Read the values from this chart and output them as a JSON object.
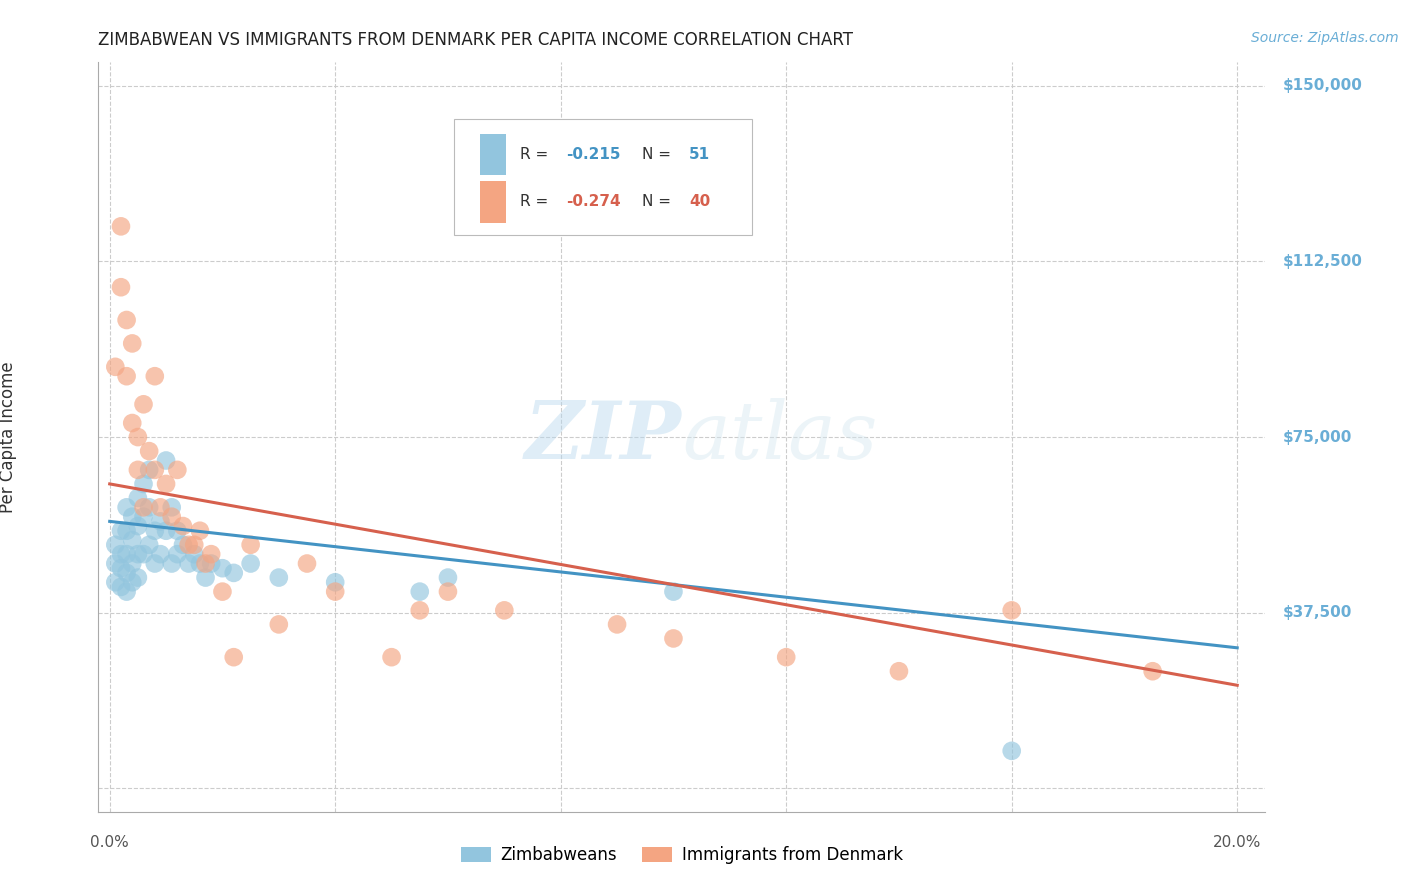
{
  "title": "ZIMBABWEAN VS IMMIGRANTS FROM DENMARK PER CAPITA INCOME CORRELATION CHART",
  "source": "Source: ZipAtlas.com",
  "ylabel": "Per Capita Income",
  "xlim": [
    -0.002,
    0.205
  ],
  "ylim": [
    -5000,
    155000
  ],
  "yticks": [
    0,
    37500,
    75000,
    112500,
    150000
  ],
  "yticklabels": [
    "",
    "$37,500",
    "$75,000",
    "$112,500",
    "$150,000"
  ],
  "blue_color": "#92c5de",
  "pink_color": "#f4a582",
  "blue_line_color": "#4393c3",
  "pink_line_color": "#d6604d",
  "r_blue": -0.215,
  "n_blue": 51,
  "r_pink": -0.274,
  "n_pink": 40,
  "legend_label_blue": "Zimbabweans",
  "legend_label_pink": "Immigrants from Denmark",
  "watermark_zip": "ZIP",
  "watermark_atlas": "atlas",
  "background_color": "#ffffff",
  "grid_color": "#cccccc",
  "title_color": "#222222",
  "source_color": "#6aaed6",
  "yticklabel_color": "#6aaed6",
  "blue_scatter_x": [
    0.001,
    0.001,
    0.001,
    0.002,
    0.002,
    0.002,
    0.002,
    0.003,
    0.003,
    0.003,
    0.003,
    0.003,
    0.004,
    0.004,
    0.004,
    0.004,
    0.005,
    0.005,
    0.005,
    0.005,
    0.006,
    0.006,
    0.006,
    0.007,
    0.007,
    0.007,
    0.008,
    0.008,
    0.009,
    0.009,
    0.01,
    0.01,
    0.011,
    0.011,
    0.012,
    0.012,
    0.013,
    0.014,
    0.015,
    0.016,
    0.017,
    0.018,
    0.02,
    0.022,
    0.025,
    0.03,
    0.04,
    0.055,
    0.06,
    0.1,
    0.16
  ],
  "blue_scatter_y": [
    52000,
    48000,
    44000,
    55000,
    50000,
    47000,
    43000,
    60000,
    55000,
    50000,
    46000,
    42000,
    58000,
    53000,
    48000,
    44000,
    62000,
    56000,
    50000,
    45000,
    65000,
    58000,
    50000,
    68000,
    60000,
    52000,
    55000,
    48000,
    57000,
    50000,
    70000,
    55000,
    60000,
    48000,
    55000,
    50000,
    52000,
    48000,
    50000,
    48000,
    45000,
    48000,
    47000,
    46000,
    48000,
    45000,
    44000,
    42000,
    45000,
    42000,
    8000
  ],
  "pink_scatter_x": [
    0.001,
    0.002,
    0.002,
    0.003,
    0.003,
    0.004,
    0.004,
    0.005,
    0.005,
    0.006,
    0.006,
    0.007,
    0.008,
    0.008,
    0.009,
    0.01,
    0.011,
    0.012,
    0.013,
    0.014,
    0.015,
    0.016,
    0.017,
    0.018,
    0.02,
    0.022,
    0.025,
    0.03,
    0.035,
    0.04,
    0.05,
    0.055,
    0.06,
    0.07,
    0.09,
    0.1,
    0.12,
    0.14,
    0.16,
    0.185
  ],
  "pink_scatter_y": [
    90000,
    120000,
    107000,
    100000,
    88000,
    78000,
    95000,
    68000,
    75000,
    82000,
    60000,
    72000,
    88000,
    68000,
    60000,
    65000,
    58000,
    68000,
    56000,
    52000,
    52000,
    55000,
    48000,
    50000,
    42000,
    28000,
    52000,
    35000,
    48000,
    42000,
    28000,
    38000,
    42000,
    38000,
    35000,
    32000,
    28000,
    25000,
    38000,
    25000
  ]
}
